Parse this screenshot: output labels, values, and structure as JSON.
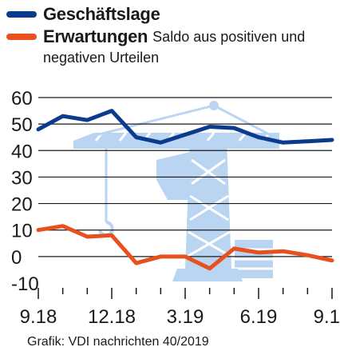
{
  "colors": {
    "geschaeftslage": "#0b3b8c",
    "erwartungen": "#e8501e",
    "crane": "#b9d5f2",
    "grid": "#1a1a1a"
  },
  "icon": "construction-crane-icon",
  "legend": {
    "series1": "Geschäftslage",
    "series2": "Erwartungen",
    "subtitle_line1": "Saldo aus positiven und",
    "subtitle_line2": "negativen Urteilen"
  },
  "source": "Grafik: VDI nachrichten 40/2019",
  "chart_data": {
    "type": "line",
    "title": "",
    "subtitle": "Saldo aus positiven und negativen Urteilen",
    "x": [
      "9.18",
      "10.18",
      "11.18",
      "12.18",
      "1.19",
      "2.19",
      "3.19",
      "4.19",
      "5.19",
      "6.19",
      "7.19",
      "8.19",
      "9.19"
    ],
    "x_tick_labels": [
      "9.18",
      "12.18",
      "3.19",
      "6.19",
      "9.19"
    ],
    "y_ticks": [
      60,
      50,
      40,
      30,
      20,
      10,
      0,
      -10
    ],
    "ylim": [
      -10,
      60
    ],
    "grid": true,
    "legend_position": "top-left",
    "series": [
      {
        "name": "Geschäftslage",
        "values": [
          48,
          53,
          51.5,
          55,
          45,
          43,
          46,
          49,
          48.5,
          45,
          43,
          43.5,
          44
        ]
      },
      {
        "name": "Erwartungen",
        "values": [
          10,
          11.5,
          7.5,
          8,
          -2.5,
          0,
          0,
          -4.5,
          3,
          1.5,
          2,
          0.5,
          -1.5
        ]
      }
    ]
  }
}
